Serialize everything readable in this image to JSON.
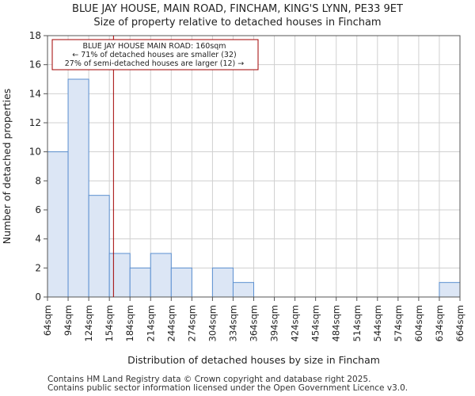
{
  "chart_data": {
    "type": "bar",
    "title_line1": "BLUE JAY HOUSE, MAIN ROAD, FINCHAM, KING'S LYNN, PE33 9ET",
    "title_line2": "Size of property relative to detached houses in Fincham",
    "xlabel": "Distribution of detached houses by size in Fincham",
    "ylabel": "Number of detached properties",
    "bin_edges": [
      64,
      94,
      124,
      154,
      184,
      214,
      244,
      274,
      304,
      334,
      364,
      394,
      424,
      454,
      484,
      514,
      544,
      574,
      604,
      634,
      664
    ],
    "tick_labels": [
      "64sqm",
      "94sqm",
      "124sqm",
      "154sqm",
      "184sqm",
      "214sqm",
      "244sqm",
      "274sqm",
      "304sqm",
      "334sqm",
      "364sqm",
      "394sqm",
      "424sqm",
      "454sqm",
      "484sqm",
      "514sqm",
      "544sqm",
      "574sqm",
      "604sqm",
      "634sqm",
      "664sqm"
    ],
    "values": [
      10,
      15,
      7,
      3,
      2,
      3,
      2,
      0,
      2,
      1,
      0,
      0,
      0,
      0,
      0,
      0,
      0,
      0,
      0,
      1
    ],
    "ylim": [
      0,
      18
    ],
    "yticks": [
      0,
      2,
      4,
      6,
      8,
      10,
      12,
      14,
      16,
      18
    ],
    "marker_value": 160,
    "bar_color": "#dce6f5",
    "bar_edge_color": "#5b8fd0",
    "marker_color": "#a00000",
    "annotation": {
      "line1": "BLUE JAY HOUSE MAIN ROAD: 160sqm",
      "line2": "← 71% of detached houses are smaller (32)",
      "line3": "27% of semi-detached houses are larger (12) →"
    }
  },
  "footer": {
    "line1": "Contains HM Land Registry data © Crown copyright and database right 2025.",
    "line2": "Contains public sector information licensed under the Open Government Licence v3.0."
  }
}
